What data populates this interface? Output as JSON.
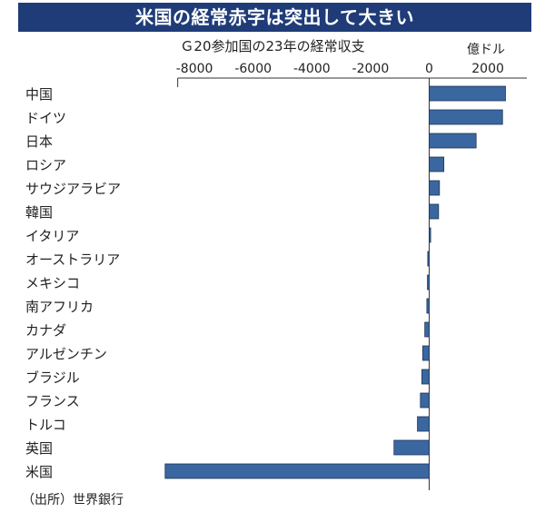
{
  "header": {
    "title": "米国の経常赤字は突出して大きい",
    "subtitle": "Ｇ20参加国の23年の経常収支",
    "unit": "億ドル"
  },
  "footer": {
    "source": "（出所）世界銀行"
  },
  "colors": {
    "title_bg": "#1f3c78",
    "bar": "#3a67a0",
    "bar_edge": "#1e3558"
  },
  "chart_data": {
    "type": "bar",
    "orientation": "horizontal",
    "title": "Ｇ20参加国の23年の経常収支",
    "xlabel": "億ドル",
    "ylabel": "",
    "xlim": [
      -9500,
      3000
    ],
    "ticks": [
      -8000,
      -6000,
      -4000,
      -2000,
      0,
      2000
    ],
    "tick_labels": [
      "-8000",
      "-6000",
      "-4000",
      "-2000",
      "0",
      "2000"
    ],
    "categories": [
      "中国",
      "ドイツ",
      "日本",
      "ロシア",
      "サウジアラビア",
      "韓国",
      "イタリア",
      "オーストラリア",
      "メキシコ",
      "南アフリカ",
      "カナダ",
      "アルゼンチン",
      "ブラジル",
      "フランス",
      "トルコ",
      "英国",
      "米国"
    ],
    "values": [
      2600,
      2500,
      1600,
      500,
      350,
      320,
      50,
      -50,
      -60,
      -80,
      -150,
      -220,
      -250,
      -300,
      -400,
      -1200,
      -9000
    ]
  }
}
